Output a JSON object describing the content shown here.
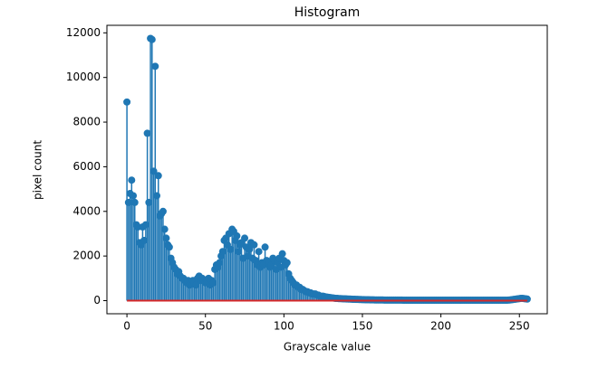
{
  "chart_data": {
    "type": "stem",
    "title": "Histogram",
    "xlabel": "Grayscale value",
    "ylabel": "pixel count",
    "color": "#1f77b4",
    "baseline_color": "#d62728",
    "xlim": [
      -12.75,
      267.75
    ],
    "xticks": [
      0,
      50,
      100,
      150,
      200,
      250
    ],
    "ylim": [
      -587,
      12337
    ],
    "yticks": [
      0,
      2000,
      4000,
      6000,
      8000,
      10000,
      12000
    ],
    "x": [
      0,
      1,
      2,
      3,
      4,
      5,
      6,
      7,
      8,
      9,
      10,
      11,
      12,
      13,
      14,
      15,
      16,
      17,
      18,
      19,
      20,
      21,
      22,
      23,
      24,
      25,
      26,
      27,
      28,
      29,
      30,
      31,
      32,
      33,
      34,
      35,
      36,
      37,
      38,
      39,
      40,
      41,
      42,
      43,
      44,
      45,
      46,
      47,
      48,
      49,
      50,
      51,
      52,
      53,
      54,
      55,
      56,
      57,
      58,
      59,
      60,
      61,
      62,
      63,
      64,
      65,
      66,
      67,
      68,
      69,
      70,
      71,
      72,
      73,
      74,
      75,
      76,
      77,
      78,
      79,
      80,
      81,
      82,
      83,
      84,
      85,
      86,
      87,
      88,
      89,
      90,
      91,
      92,
      93,
      94,
      95,
      96,
      97,
      98,
      99,
      100,
      101,
      102,
      103,
      104,
      105,
      106,
      107,
      108,
      109,
      110,
      111,
      112,
      113,
      114,
      115,
      116,
      117,
      118,
      119,
      120,
      121,
      122,
      123,
      124,
      125,
      126,
      127,
      128,
      129,
      130,
      131,
      132,
      133,
      134,
      135,
      136,
      137,
      138,
      139,
      140,
      141,
      142,
      143,
      144,
      145,
      146,
      147,
      148,
      149,
      150,
      151,
      152,
      153,
      154,
      155,
      156,
      157,
      158,
      159,
      160,
      161,
      162,
      163,
      164,
      165,
      166,
      167,
      168,
      169,
      170,
      171,
      172,
      173,
      174,
      175,
      176,
      177,
      178,
      179,
      180,
      181,
      182,
      183,
      184,
      185,
      186,
      187,
      188,
      189,
      190,
      191,
      192,
      193,
      194,
      195,
      196,
      197,
      198,
      199,
      200,
      201,
      202,
      203,
      204,
      205,
      206,
      207,
      208,
      209,
      210,
      211,
      212,
      213,
      214,
      215,
      216,
      217,
      218,
      219,
      220,
      221,
      222,
      223,
      224,
      225,
      226,
      227,
      228,
      229,
      230,
      231,
      232,
      233,
      234,
      235,
      236,
      237,
      238,
      239,
      240,
      241,
      242,
      243,
      244,
      245,
      246,
      247,
      248,
      249,
      250,
      251,
      252,
      253,
      254,
      255
    ],
    "values": [
      8900,
      4400,
      4800,
      5400,
      4700,
      4400,
      3400,
      3300,
      2600,
      2500,
      3300,
      2700,
      3400,
      7500,
      4400,
      11750,
      11700,
      5800,
      10500,
      4700,
      5600,
      3800,
      3900,
      4000,
      3200,
      2800,
      2500,
      2400,
      1900,
      1700,
      1500,
      1400,
      1200,
      1300,
      1100,
      1000,
      1000,
      900,
      800,
      900,
      700,
      800,
      900,
      800,
      700,
      1000,
      1100,
      900,
      1000,
      900,
      800,
      900,
      1000,
      700,
      900,
      800,
      1400,
      1600,
      1500,
      1700,
      2000,
      2200,
      2700,
      2800,
      2500,
      3000,
      2300,
      3200,
      3100,
      2700,
      2900,
      2200,
      2500,
      2600,
      1900,
      2800,
      2400,
      2000,
      2300,
      2600,
      1900,
      2500,
      1800,
      1600,
      2200,
      1500,
      1700,
      1600,
      2400,
      1800,
      1700,
      1500,
      1600,
      1900,
      1800,
      1400,
      1700,
      1900,
      1500,
      2100,
      1800,
      1600,
      1700,
      1200,
      1000,
      900,
      800,
      700,
      700,
      600,
      600,
      500,
      500,
      450,
      400,
      400,
      350,
      350,
      300,
      300,
      300,
      250,
      250,
      200,
      200,
      200,
      180,
      160,
      150,
      140,
      130,
      120,
      110,
      100,
      100,
      90,
      90,
      85,
      80,
      80,
      75,
      70,
      70,
      65,
      60,
      60,
      55,
      55,
      50,
      50,
      45,
      45,
      40,
      40,
      40,
      35,
      35,
      35,
      30,
      30,
      30,
      30,
      30,
      30,
      25,
      25,
      25,
      25,
      25,
      25,
      25,
      25,
      25,
      25,
      25,
      25,
      20,
      20,
      20,
      20,
      20,
      20,
      20,
      20,
      20,
      20,
      20,
      20,
      20,
      20,
      20,
      20,
      20,
      20,
      20,
      20,
      20,
      20,
      20,
      20,
      20,
      20,
      20,
      20,
      20,
      20,
      20,
      20,
      20,
      20,
      20,
      20,
      20,
      20,
      20,
      20,
      20,
      20,
      20,
      20,
      20,
      20,
      20,
      20,
      20,
      20,
      20,
      20,
      20,
      20,
      20,
      20,
      20,
      20,
      20,
      20,
      20,
      20,
      20,
      20,
      20,
      20,
      20,
      25,
      30,
      40,
      50,
      60,
      70,
      80,
      90,
      100,
      100,
      90,
      80,
      70
    ]
  }
}
